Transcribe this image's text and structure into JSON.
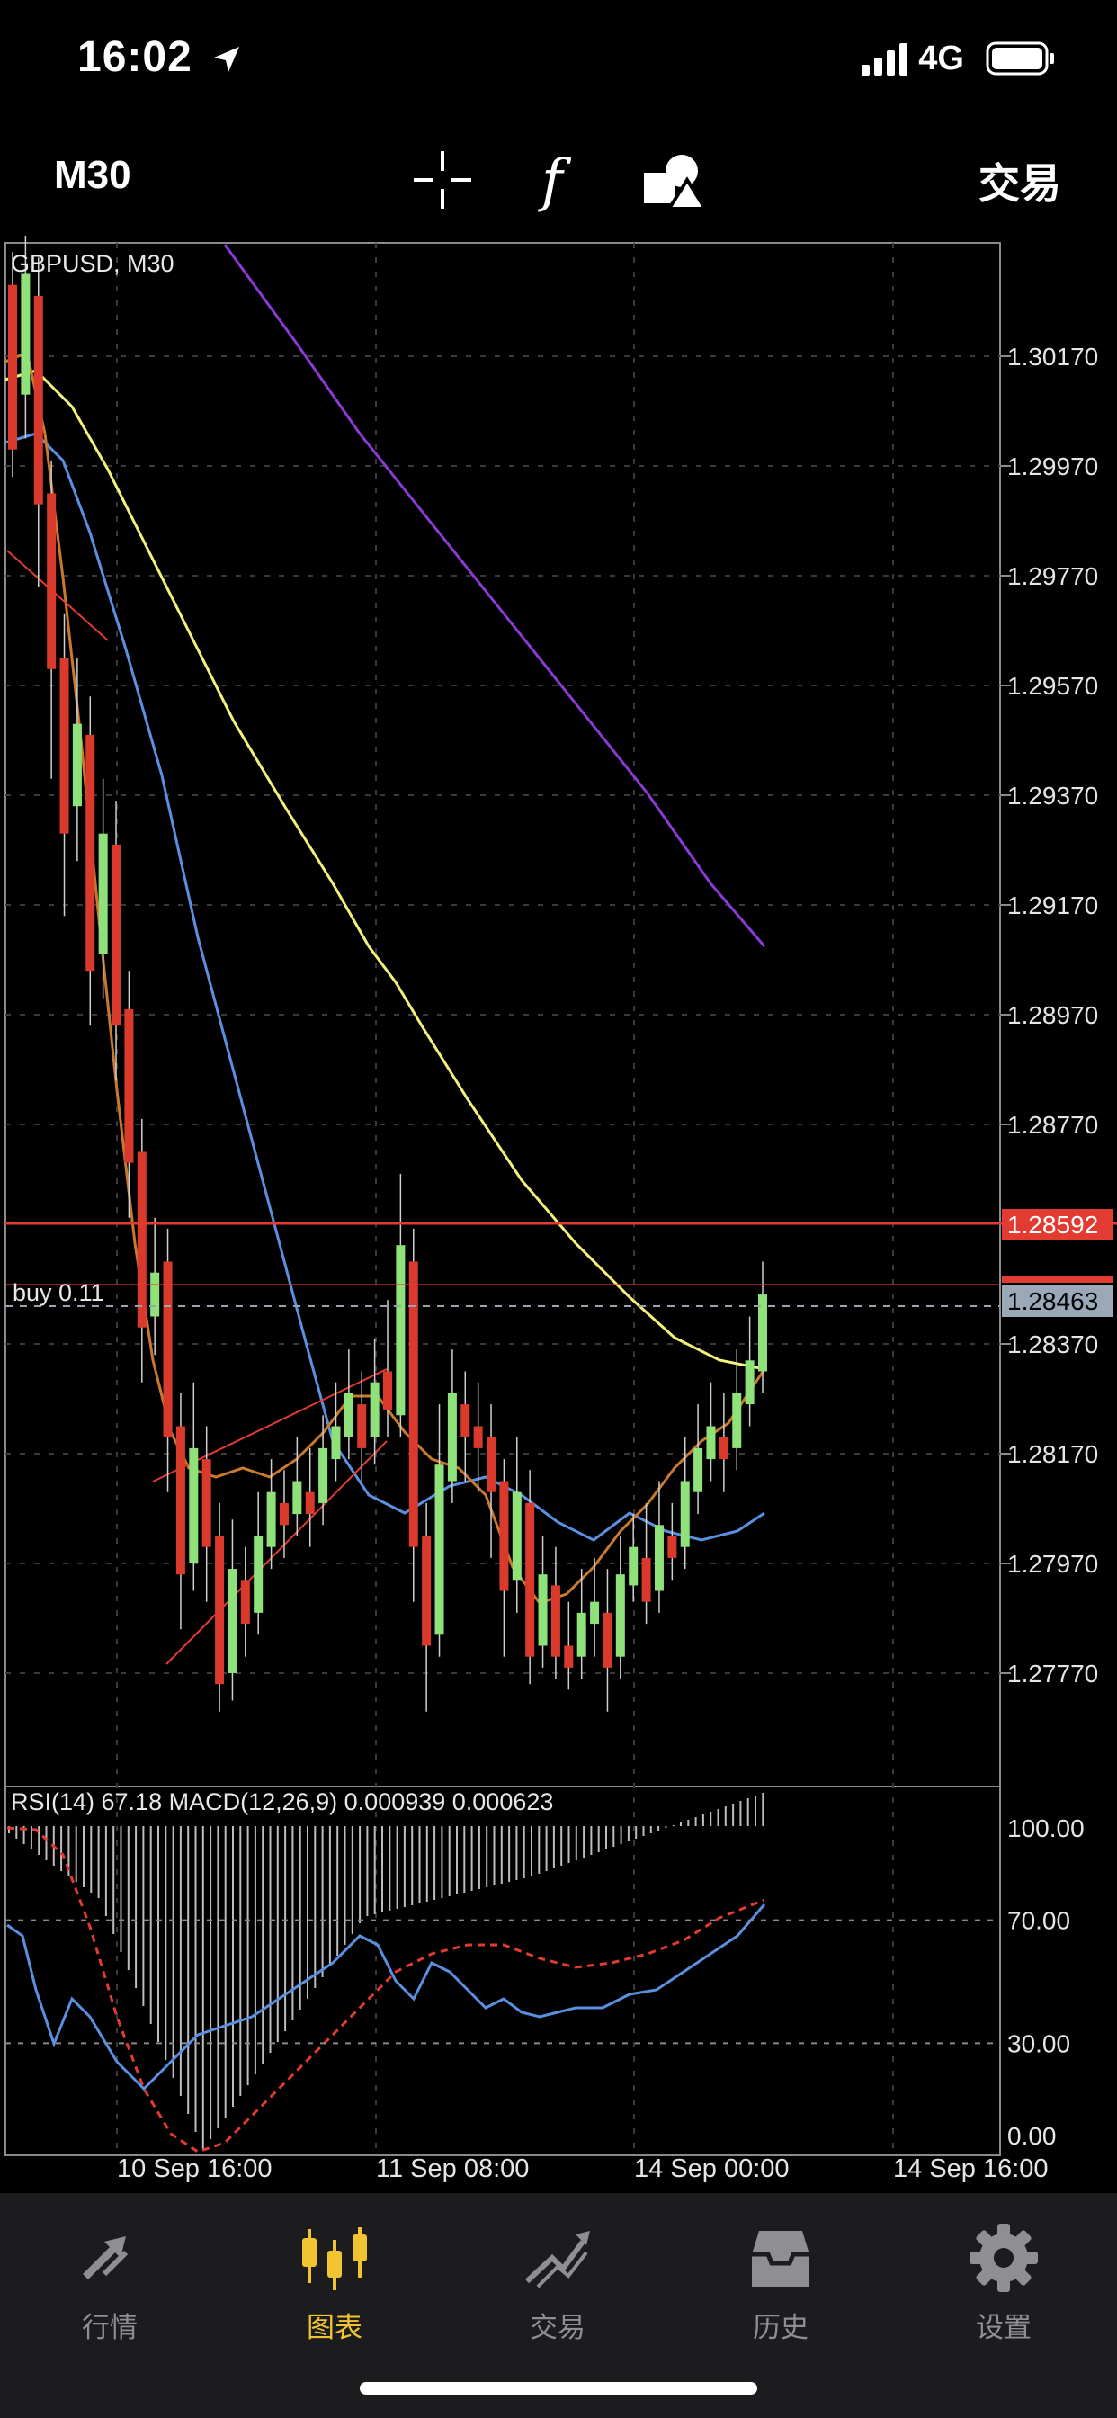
{
  "status_bar": {
    "time": "16:02",
    "network": "4G"
  },
  "toolbar": {
    "timeframe": "M30",
    "trade_label": "交易",
    "functions_glyph": "f"
  },
  "chart": {
    "symbol_label": "GBPUSD, M30",
    "price_axis": [
      "1.30170",
      "1.29970",
      "1.29770",
      "1.29570",
      "1.29370",
      "1.29170",
      "1.28970",
      "1.28770",
      "1.28370",
      "1.28170",
      "1.27970",
      "1.27770"
    ],
    "hline_price": "1.28592",
    "current_price": "1.28463",
    "order_label": "buy 0.11",
    "time_axis": [
      "10 Sep 16:00",
      "11 Sep 08:00",
      "14 Sep 00:00",
      "14 Sep 16:00"
    ],
    "indicator_label": "RSI(14) 67.18 MACD(12,26,9) 0.000939 0.000623",
    "indicator_axis": [
      "100.00",
      "70.00",
      "30.00",
      "0.00"
    ],
    "colors": {
      "bull": "#8fe27a",
      "bear": "#d93a2b",
      "ma_yellow": "#f4f07a",
      "ma_blue": "#5b8fe0",
      "ma_purple": "#8a3bd6",
      "ma_orange": "#c97a2e",
      "line_red": "#e23c32"
    }
  },
  "bottom_nav": [
    {
      "label": "行情",
      "icon": "quotes-icon",
      "active": false
    },
    {
      "label": "图表",
      "icon": "chart-icon",
      "active": true
    },
    {
      "label": "交易",
      "icon": "trade-icon",
      "active": false
    },
    {
      "label": "历史",
      "icon": "history-icon",
      "active": false
    },
    {
      "label": "设置",
      "icon": "settings-icon",
      "active": false
    }
  ]
}
